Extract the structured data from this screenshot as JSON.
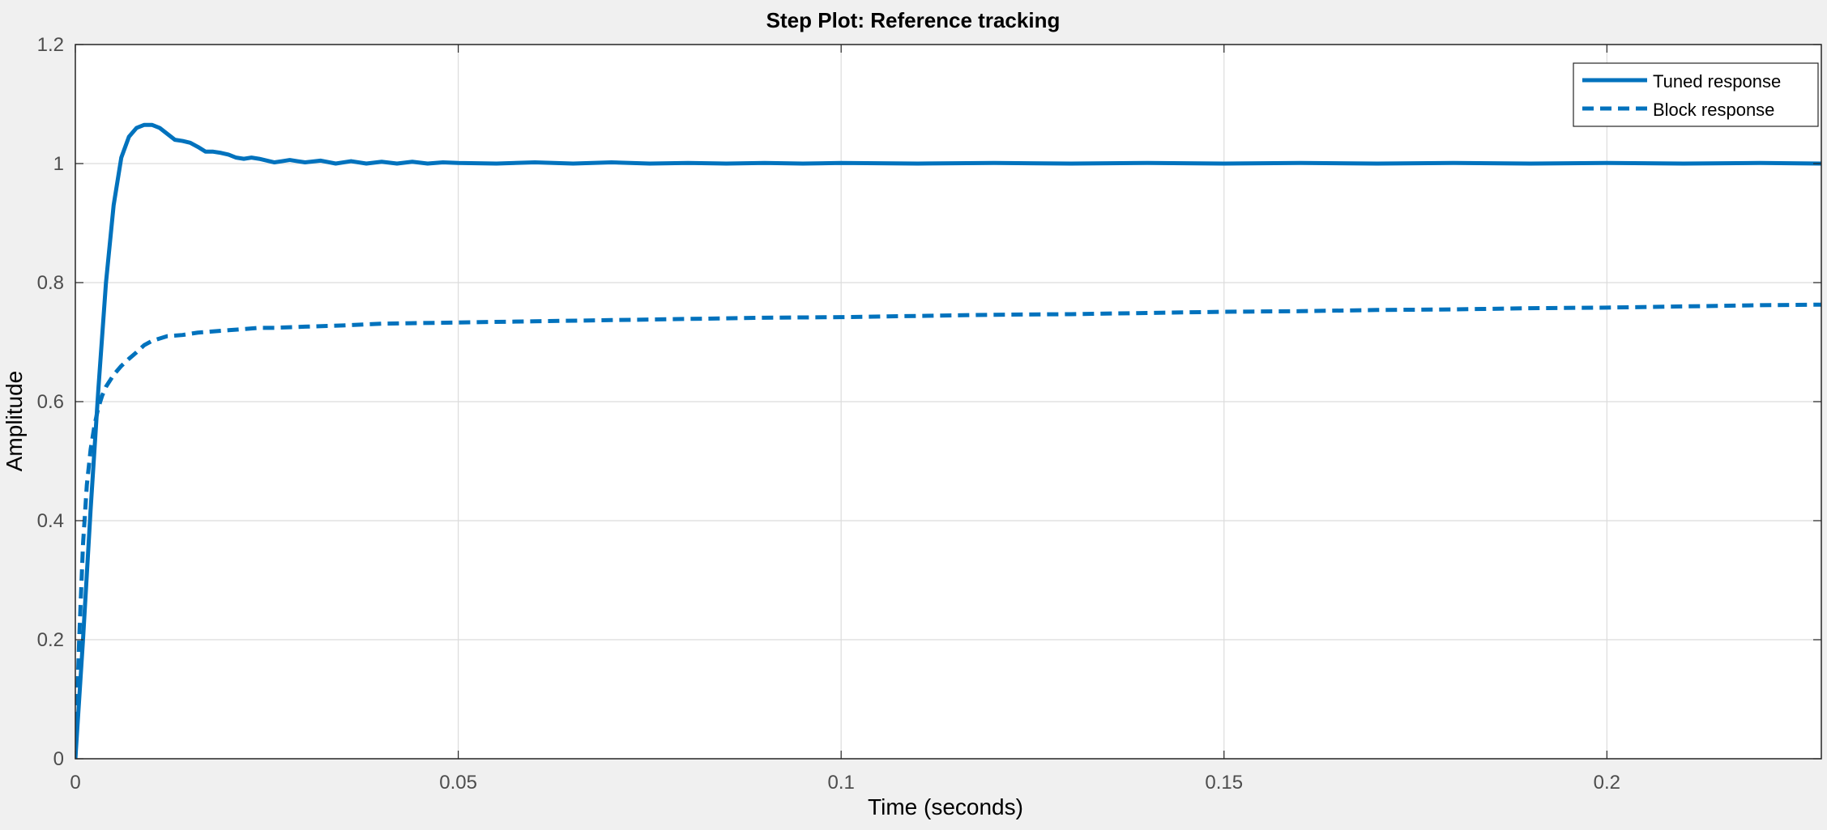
{
  "chart_data": {
    "type": "line",
    "title": "Step Plot: Reference tracking",
    "xlabel": "Time (seconds)",
    "ylabel": "Amplitude",
    "xlim": [
      0,
      0.228
    ],
    "ylim": [
      0,
      1.2
    ],
    "xticks": [
      0,
      0.05,
      0.1,
      0.15,
      0.2
    ],
    "xtick_labels": [
      "0",
      "0.05",
      "0.1",
      "0.15",
      "0.2"
    ],
    "yticks": [
      0,
      0.2,
      0.4,
      0.6,
      0.8,
      1,
      1.2
    ],
    "ytick_labels": [
      "0",
      "0.2",
      "0.4",
      "0.6",
      "0.8",
      "1",
      "1.2"
    ],
    "grid": true,
    "legend_position": "top-right",
    "colors": {
      "series": "#0072bd",
      "grid": "#dcdcdc",
      "axes": "#262626",
      "figure_background": "#f0f0f0",
      "plot_background": "#ffffff"
    },
    "series": [
      {
        "name": "Tuned response",
        "style": "solid",
        "x": [
          0,
          0.001,
          0.002,
          0.003,
          0.004,
          0.005,
          0.006,
          0.007,
          0.008,
          0.009,
          0.01,
          0.011,
          0.012,
          0.013,
          0.014,
          0.015,
          0.016,
          0.017,
          0.018,
          0.019,
          0.02,
          0.021,
          0.022,
          0.023,
          0.024,
          0.025,
          0.026,
          0.027,
          0.028,
          0.029,
          0.03,
          0.032,
          0.034,
          0.036,
          0.038,
          0.04,
          0.042,
          0.044,
          0.046,
          0.048,
          0.05,
          0.055,
          0.06,
          0.065,
          0.07,
          0.075,
          0.08,
          0.085,
          0.09,
          0.095,
          0.1,
          0.11,
          0.12,
          0.13,
          0.14,
          0.15,
          0.16,
          0.17,
          0.18,
          0.19,
          0.2,
          0.21,
          0.22,
          0.228
        ],
        "y": [
          0,
          0.2,
          0.42,
          0.62,
          0.8,
          0.93,
          1.01,
          1.045,
          1.06,
          1.065,
          1.065,
          1.06,
          1.05,
          1.04,
          1.038,
          1.035,
          1.028,
          1.02,
          1.02,
          1.018,
          1.015,
          1.01,
          1.008,
          1.01,
          1.008,
          1.005,
          1.002,
          1.004,
          1.006,
          1.004,
          1.002,
          1.005,
          1.0,
          1.004,
          1.0,
          1.003,
          1.0,
          1.003,
          1.0,
          1.002,
          1.001,
          1.0,
          1.002,
          1.0,
          1.002,
          1.0,
          1.001,
          1.0,
          1.001,
          1.0,
          1.001,
          1.0,
          1.001,
          1.0,
          1.001,
          1.0,
          1.001,
          1.0,
          1.001,
          1.0,
          1.001,
          1.0,
          1.001,
          1.0
        ]
      },
      {
        "name": "Block response",
        "style": "dashed",
        "x": [
          0,
          0.0005,
          0.001,
          0.0015,
          0.002,
          0.0025,
          0.003,
          0.0035,
          0.004,
          0.005,
          0.006,
          0.007,
          0.008,
          0.009,
          0.01,
          0.012,
          0.014,
          0.016,
          0.018,
          0.02,
          0.022,
          0.024,
          0.026,
          0.028,
          0.03,
          0.035,
          0.04,
          0.045,
          0.05,
          0.06,
          0.07,
          0.08,
          0.09,
          0.1,
          0.11,
          0.12,
          0.13,
          0.14,
          0.15,
          0.16,
          0.17,
          0.18,
          0.19,
          0.2,
          0.21,
          0.22,
          0.228
        ],
        "y": [
          0,
          0.2,
          0.36,
          0.46,
          0.52,
          0.56,
          0.59,
          0.61,
          0.625,
          0.645,
          0.66,
          0.672,
          0.683,
          0.695,
          0.702,
          0.71,
          0.712,
          0.716,
          0.718,
          0.72,
          0.722,
          0.724,
          0.724,
          0.725,
          0.726,
          0.728,
          0.731,
          0.732,
          0.733,
          0.735,
          0.737,
          0.739,
          0.741,
          0.742,
          0.744,
          0.746,
          0.747,
          0.749,
          0.751,
          0.752,
          0.754,
          0.755,
          0.757,
          0.758,
          0.76,
          0.762,
          0.763
        ]
      }
    ]
  }
}
